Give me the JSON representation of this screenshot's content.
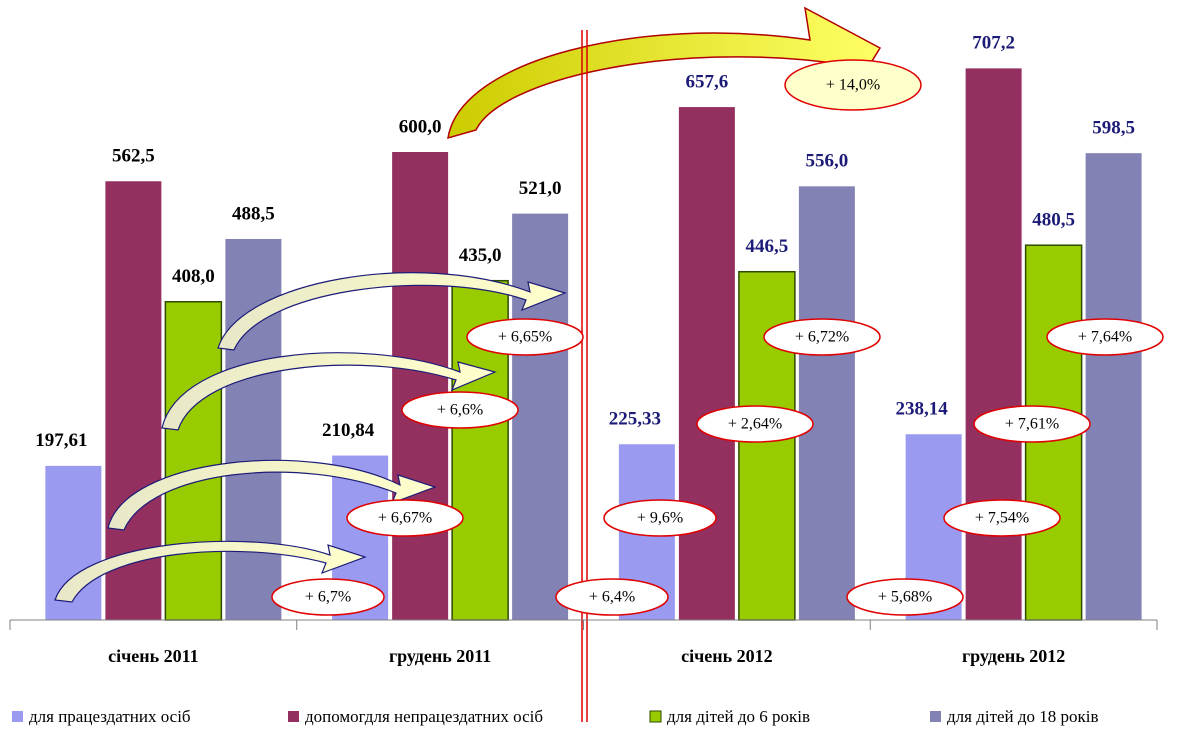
{
  "chart_data": {
    "type": "bar",
    "categories": [
      "січень 2011",
      "грудень 2011",
      "січень 2012",
      "грудень 2012"
    ],
    "series": [
      {
        "name": "для працездатних осіб",
        "color": "#9a9af0",
        "values": [
          197.61,
          210.84,
          225.33,
          238.14
        ],
        "value_labels": [
          "197,61",
          "210,84",
          "225,33",
          "238,14"
        ]
      },
      {
        "name": "допомогдля непрацездатних осіб",
        "color": "#94305f",
        "values": [
          562.5,
          600.0,
          657.6,
          707.2
        ],
        "value_labels": [
          "562,5",
          "600,0",
          "657,6",
          "707,2"
        ]
      },
      {
        "name": "для дітей до 6 років",
        "color": "#99cc00",
        "values": [
          408.0,
          435.0,
          446.5,
          480.5
        ],
        "value_labels": [
          "408,0",
          "435,0",
          "446,5",
          "480,5"
        ]
      },
      {
        "name": "для дітей до 18 років",
        "color": "#8282b4",
        "values": [
          488.5,
          521.0,
          556.0,
          598.5
        ],
        "value_labels": [
          "488,5",
          "521,0",
          "556,0",
          "598,5"
        ]
      }
    ],
    "label_colors": [
      "#000000",
      "#000000",
      "#1c1c78",
      "#1c1c78"
    ],
    "ylim": [
      0,
      750
    ],
    "annotations": [
      "+ 14,0%",
      "+ 6,65%",
      "+ 6,6%",
      "+ 6,67%",
      "+ 6,7%",
      "+ 6,4%",
      "+ 9,6%",
      "+ 2,64%",
      "+ 6,72%",
      "+ 5,68%",
      "+ 7,54%",
      "+ 7,61%",
      "+ 7,64%"
    ]
  }
}
